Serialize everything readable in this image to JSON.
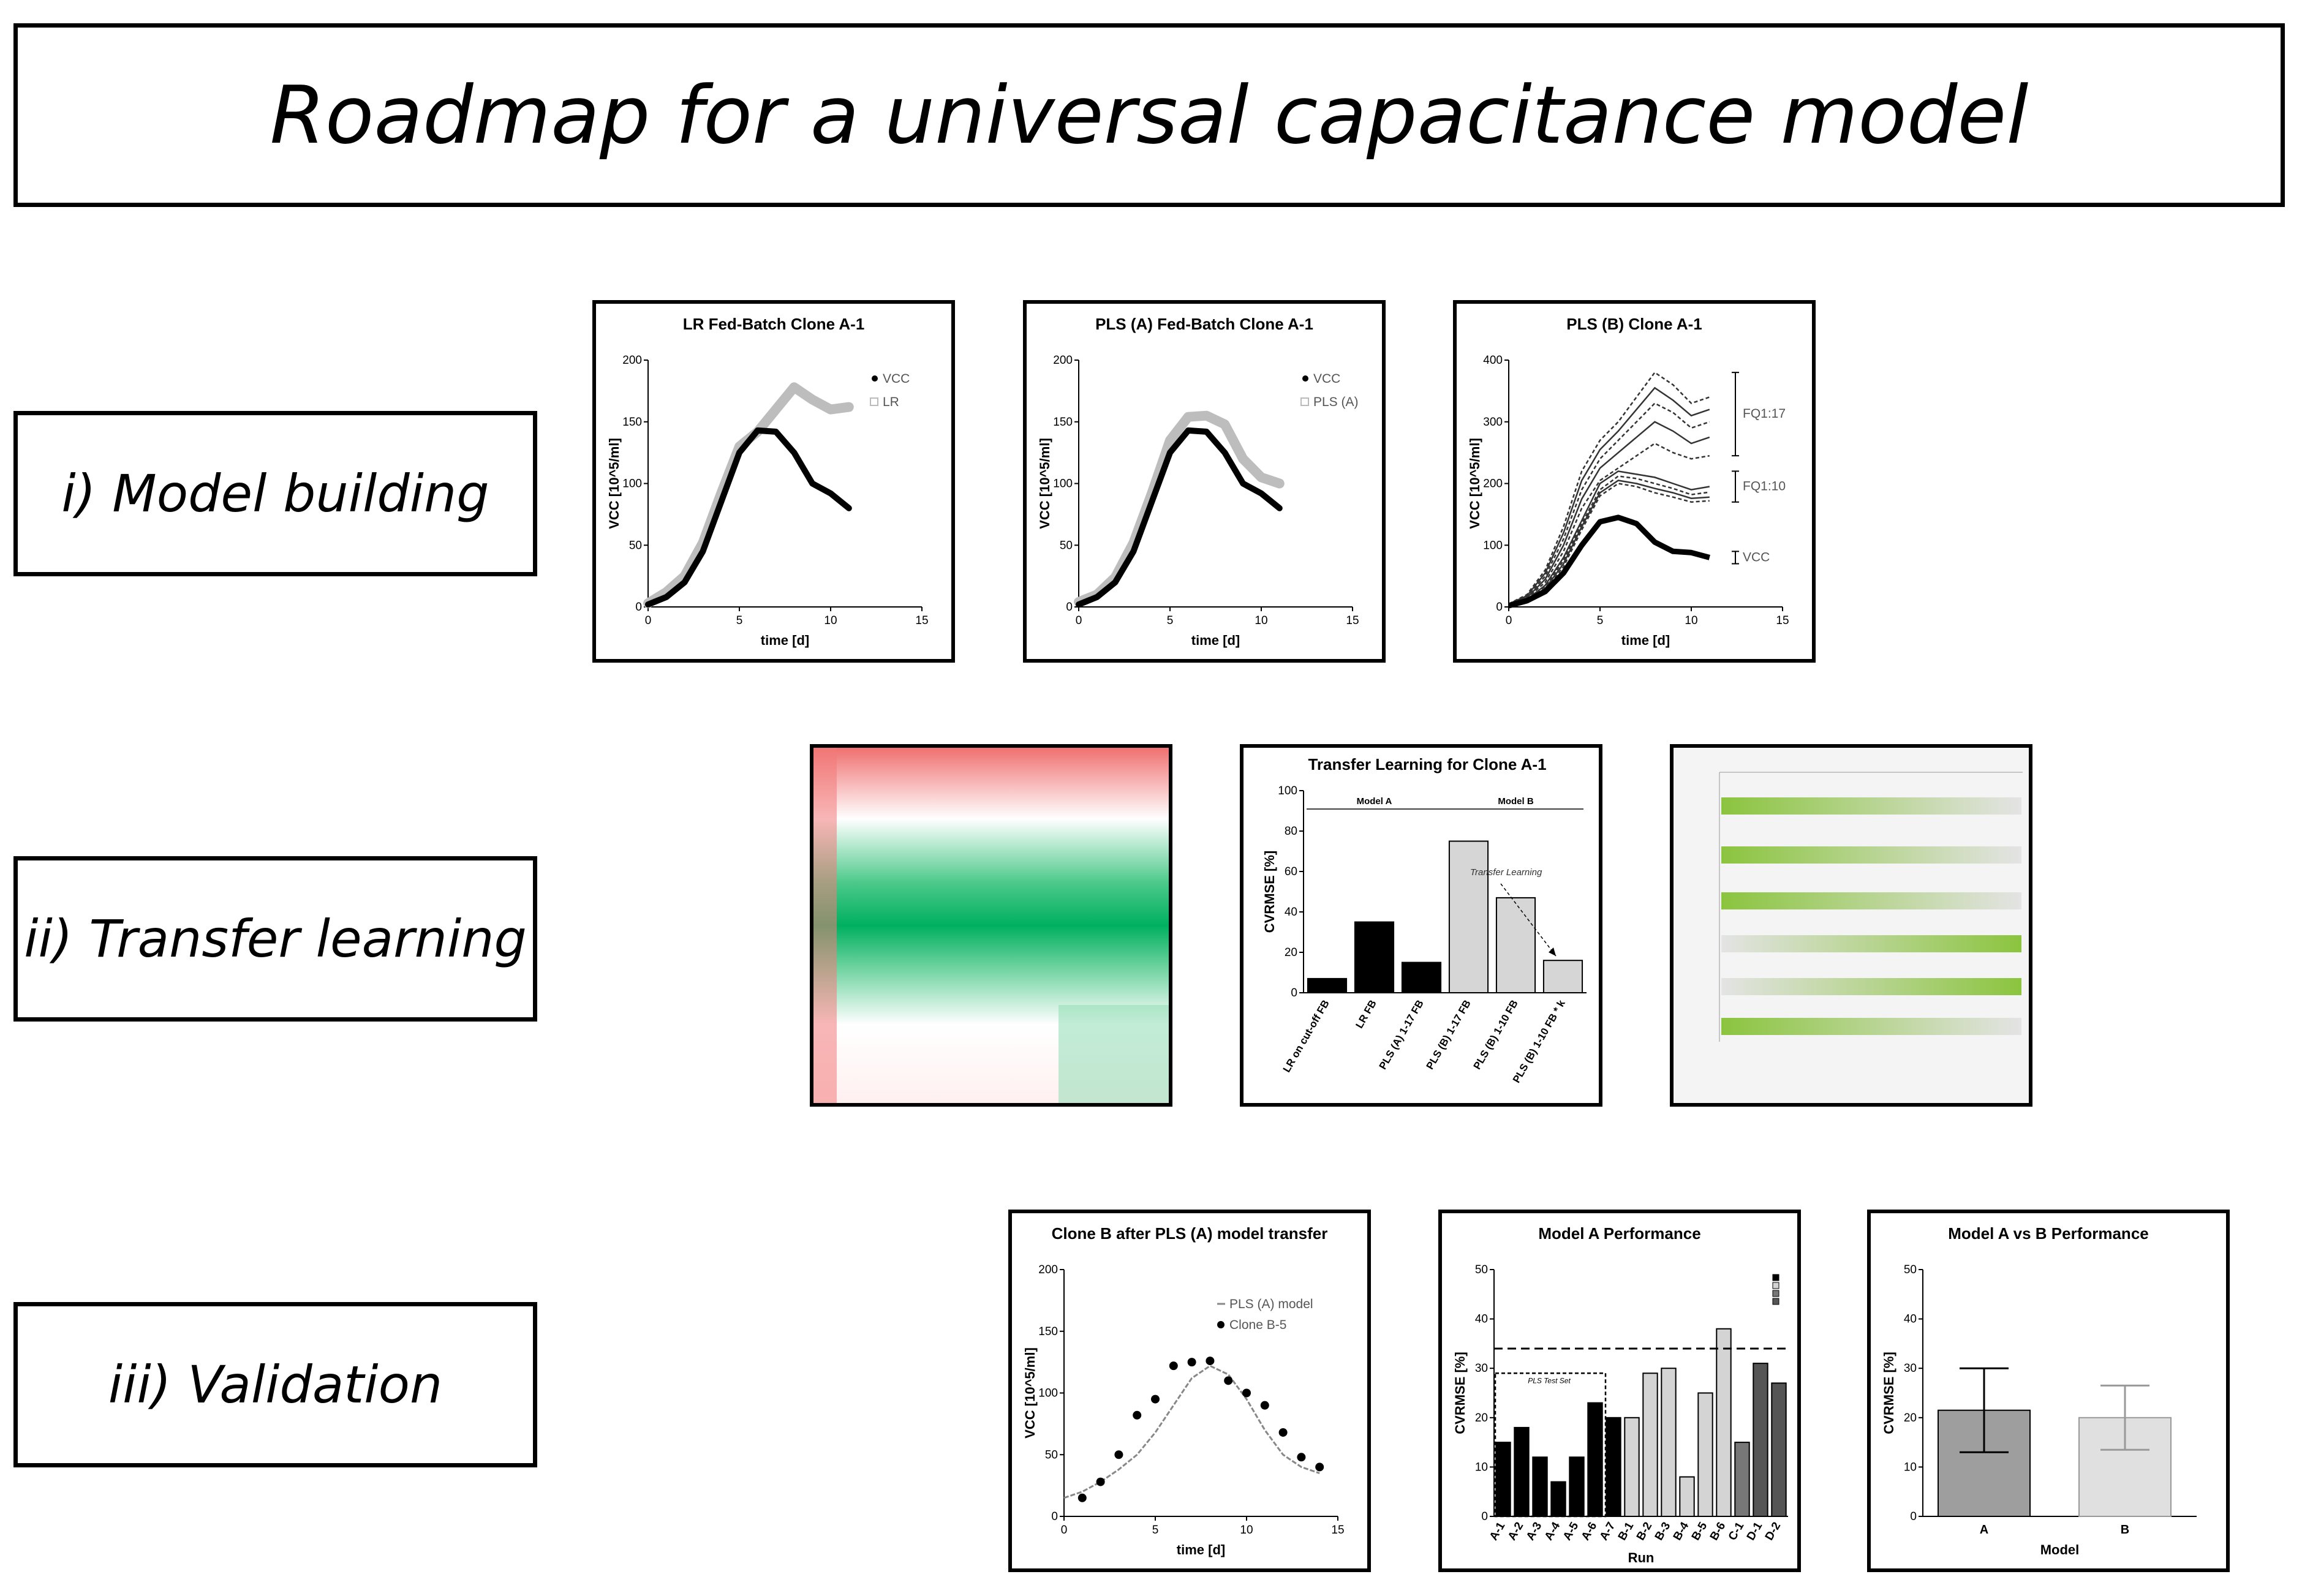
{
  "title": "Roadmap for a universal capacitance model",
  "stages": [
    {
      "label": "i) Model building"
    },
    {
      "label": "ii) Transfer learning"
    },
    {
      "label": "iii) Validation"
    }
  ],
  "colors": {
    "black_series": "#000000",
    "grey_series": "#bdbdbd",
    "heatmap_green": "#00b060",
    "heatmap_red": "#f07070",
    "spectra_green": "#7fbf2a"
  },
  "chart_data": [
    {
      "type": "line",
      "title": "LR Fed-Batch Clone  A-1",
      "xlabel": "time [d]",
      "ylabel": "VCC [10^5/ml]",
      "xlim": [
        0,
        15
      ],
      "ylim": [
        0,
        200
      ],
      "xticks": [
        "0",
        "5",
        "10",
        "15"
      ],
      "yticks": [
        "0",
        "50",
        "100",
        "150",
        "200"
      ],
      "legend": [
        "VCC",
        "LR"
      ],
      "series": [
        {
          "name": "VCC",
          "x": [
            0,
            1,
            2,
            3,
            4,
            5,
            6,
            7,
            8,
            9,
            10,
            11
          ],
          "y": [
            2,
            8,
            20,
            45,
            85,
            125,
            143,
            142,
            125,
            100,
            92,
            80
          ]
        },
        {
          "name": "LR",
          "x": [
            0,
            1,
            2,
            3,
            4,
            5,
            6,
            7,
            8,
            9,
            10,
            11
          ],
          "y": [
            3,
            12,
            25,
            52,
            92,
            130,
            142,
            160,
            178,
            168,
            160,
            162
          ]
        }
      ]
    },
    {
      "type": "line",
      "title": "PLS (A) Fed-Batch Clone A-1",
      "xlabel": "time [d]",
      "ylabel": "VCC [10^5/ml]",
      "xlim": [
        0,
        15
      ],
      "ylim": [
        0,
        200
      ],
      "xticks": [
        "0",
        "5",
        "10",
        "15"
      ],
      "yticks": [
        "0",
        "50",
        "100",
        "150",
        "200"
      ],
      "legend": [
        "VCC",
        "PLS (A)"
      ],
      "series": [
        {
          "name": "VCC",
          "x": [
            0,
            1,
            2,
            3,
            4,
            5,
            6,
            7,
            8,
            9,
            10,
            11
          ],
          "y": [
            2,
            8,
            20,
            45,
            85,
            125,
            143,
            142,
            125,
            100,
            92,
            80
          ]
        },
        {
          "name": "PLS (A)",
          "x": [
            0,
            1,
            2,
            3,
            4,
            5,
            6,
            7,
            8,
            9,
            10,
            11
          ],
          "y": [
            4,
            10,
            24,
            52,
            92,
            135,
            154,
            155,
            148,
            120,
            105,
            100
          ]
        }
      ]
    },
    {
      "type": "line",
      "title": "PLS (B) Clone A-1",
      "xlabel": "time [d]",
      "ylabel": "VCC [10^5/ml]",
      "xlim": [
        0,
        15
      ],
      "ylim": [
        0,
        400
      ],
      "xticks": [
        "0",
        "5",
        "10",
        "15"
      ],
      "yticks": [
        "0",
        "100",
        "200",
        "300",
        "400"
      ],
      "annotations": [
        "FQ1:17",
        "FQ1:10",
        "VCC"
      ],
      "x": [
        0,
        1,
        2,
        3,
        4,
        5,
        6,
        7,
        8,
        9,
        10,
        11
      ],
      "series": [
        {
          "name": "VCC",
          "y": [
            2,
            10,
            25,
            55,
            100,
            138,
            145,
            135,
            105,
            90,
            88,
            80
          ]
        },
        {
          "y": [
            5,
            20,
            60,
            130,
            220,
            270,
            300,
            340,
            380,
            360,
            330,
            340
          ]
        },
        {
          "y": [
            5,
            18,
            55,
            120,
            205,
            255,
            285,
            320,
            355,
            335,
            310,
            320
          ]
        },
        {
          "y": [
            5,
            16,
            50,
            110,
            190,
            240,
            270,
            300,
            330,
            315,
            290,
            300
          ]
        },
        {
          "y": [
            5,
            15,
            45,
            100,
            175,
            225,
            250,
            275,
            300,
            285,
            265,
            275
          ]
        },
        {
          "y": [
            5,
            14,
            40,
            90,
            160,
            205,
            225,
            245,
            265,
            250,
            240,
            245
          ]
        },
        {
          "y": [
            5,
            12,
            35,
            80,
            140,
            200,
            220,
            215,
            210,
            200,
            190,
            195
          ]
        },
        {
          "y": [
            5,
            12,
            33,
            75,
            135,
            190,
            212,
            208,
            200,
            192,
            182,
            186
          ]
        },
        {
          "y": [
            5,
            11,
            30,
            70,
            130,
            185,
            205,
            200,
            192,
            185,
            176,
            178
          ]
        },
        {
          "y": [
            5,
            10,
            28,
            65,
            125,
            180,
            200,
            195,
            185,
            178,
            170,
            172
          ]
        }
      ]
    },
    {
      "type": "heatmap",
      "title": ""
    },
    {
      "type": "bar",
      "title": "Transfer Learning for Clone A-1",
      "ylabel": "CVRMSE [%]",
      "ylim": [
        0,
        100
      ],
      "yticks": [
        "0",
        "20",
        "40",
        "60",
        "80",
        "100"
      ],
      "groups": [
        "Model A",
        "Model B"
      ],
      "annotation": "Transfer Learning",
      "categories": [
        "LR on cut-off FB",
        "LR FB",
        "PLS (A) 1-17 FB",
        "PLS (B) 1-17 FB",
        "PLS (B) 1-10 FB",
        "PLS (B) 1-10 FB * k"
      ],
      "values": [
        7,
        35,
        15,
        75,
        47,
        16
      ]
    },
    {
      "type": "heatmap",
      "title": ""
    },
    {
      "type": "scatter",
      "title": "Clone B after PLS (A) model transfer",
      "xlabel": "time [d]",
      "ylabel": "VCC [10^5/ml]",
      "xlim": [
        0,
        15
      ],
      "ylim": [
        0,
        200
      ],
      "xticks": [
        "0",
        "5",
        "10",
        "15"
      ],
      "yticks": [
        "0",
        "50",
        "100",
        "150",
        "200"
      ],
      "legend": [
        "PLS (A) model",
        "Clone B-5"
      ],
      "series": [
        {
          "name": "PLS (A) model",
          "x": [
            0,
            1,
            2,
            3,
            4,
            5,
            6,
            7,
            8,
            9,
            10,
            11,
            12,
            13,
            14
          ],
          "y": [
            15,
            20,
            28,
            38,
            50,
            68,
            90,
            112,
            122,
            115,
            95,
            70,
            50,
            40,
            35
          ]
        },
        {
          "name": "Clone B-5",
          "x": [
            1,
            2,
            3,
            4,
            5,
            6,
            7,
            8,
            9,
            10,
            11,
            12,
            13,
            14
          ],
          "y": [
            15,
            28,
            50,
            82,
            95,
            122,
            125,
            126,
            110,
            100,
            90,
            68,
            48,
            40
          ]
        }
      ]
    },
    {
      "type": "bar",
      "title": "Model A Performance",
      "xlabel": "Run",
      "ylabel": "CVRMSE [%]",
      "ylim": [
        0,
        50
      ],
      "yticks": [
        "0",
        "10",
        "20",
        "30",
        "40",
        "50"
      ],
      "annotation": "PLS Test Set",
      "categories": [
        "A-1",
        "A-2",
        "A-3",
        "A-4",
        "A-5",
        "A-6",
        "A-7",
        "B-1",
        "B-2",
        "B-3",
        "B-4",
        "B-5",
        "B-6",
        "C-1",
        "D-1",
        "D-2"
      ],
      "values": [
        15,
        18,
        12,
        7,
        12,
        23,
        20,
        20,
        29,
        30,
        8,
        25,
        38,
        15,
        31,
        27
      ]
    },
    {
      "type": "bar",
      "title": "Model A vs B Performance",
      "xlabel": "Model",
      "ylabel": "CVRMSE [%]",
      "ylim": [
        0,
        50
      ],
      "yticks": [
        "0",
        "10",
        "20",
        "30",
        "40",
        "50"
      ],
      "categories": [
        "A",
        "B"
      ],
      "values": [
        21.5,
        20
      ],
      "error": [
        [
          13,
          30
        ],
        [
          13.5,
          26.5
        ]
      ]
    }
  ]
}
